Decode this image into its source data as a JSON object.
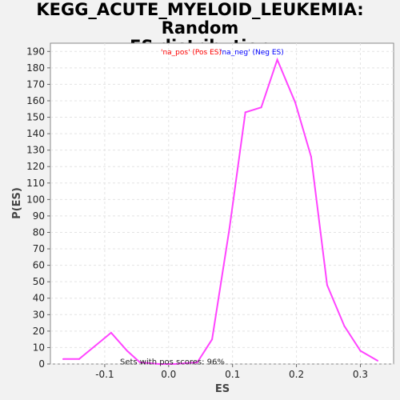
{
  "chart_data": {
    "type": "line",
    "title_line1": "KEGG_ACUTE_MYELOID_LEUKEMIA: Random",
    "title_line2": "ES distribution",
    "xlabel": "ES",
    "ylabel": "P(ES)",
    "xlim": [
      -0.185,
      0.352
    ],
    "ylim": [
      0,
      195
    ],
    "xticks": [
      -0.1,
      0.0,
      0.1,
      0.2,
      0.3
    ],
    "xtick_labels": [
      "-0.1",
      "0.0",
      "0.1",
      "0.2",
      "0.3"
    ],
    "yticks": [
      0,
      10,
      20,
      30,
      40,
      50,
      60,
      70,
      80,
      90,
      100,
      110,
      120,
      130,
      140,
      150,
      160,
      170,
      180,
      190
    ],
    "grid": true,
    "legend": {
      "placement": "top-center",
      "pos_label": "'na_pos' (Pos ES)",
      "neg_label": "'na_neg' (Neg ES)",
      "pos_color": "#ff0000",
      "neg_color": "#0000ff"
    },
    "annotation": "Sets with pos scores: 96%",
    "line_color": "#ff44ff",
    "series": [
      {
        "x": [
          -0.165,
          -0.14,
          -0.09,
          -0.065,
          -0.045,
          -0.015,
          0.01,
          0.045,
          0.068,
          0.095,
          0.12,
          0.145,
          0.17,
          0.198,
          0.223,
          0.248,
          0.275,
          0.3,
          0.327
        ],
        "y": [
          3,
          3,
          19,
          8,
          1,
          0,
          0,
          1,
          15,
          82,
          153,
          156,
          185,
          159,
          126,
          48,
          23,
          8,
          2
        ]
      }
    ]
  }
}
